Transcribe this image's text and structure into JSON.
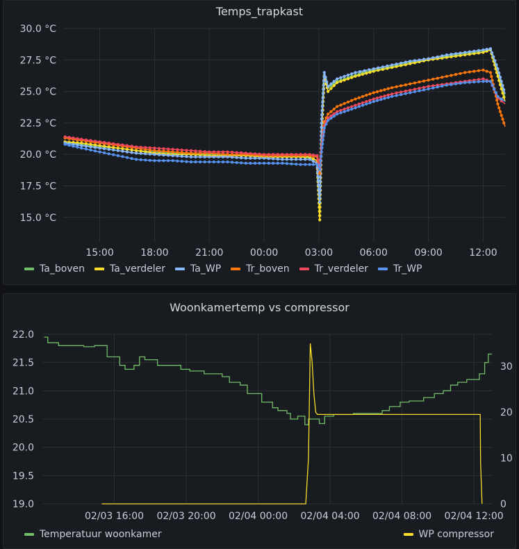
{
  "panels": [
    {
      "title": "Temps_trapkast"
    },
    {
      "title": "Woonkamertemp vs compressor"
    }
  ],
  "chart_data": [
    {
      "type": "line",
      "title": "Temps_trapkast",
      "x_ticks": [
        "15:00",
        "18:00",
        "21:00",
        "00:00",
        "03:00",
        "06:00",
        "09:00",
        "12:00"
      ],
      "x_tick_hours": [
        15,
        18,
        21,
        24,
        27,
        30,
        33,
        36
      ],
      "xlim_hours": [
        13.0,
        37.2
      ],
      "y_ticks": [
        "30.0 °C",
        "27.5 °C",
        "25.0 °C",
        "22.5 °C",
        "20.0 °C",
        "17.5 °C",
        "15.0 °C"
      ],
      "ylim": [
        13.0,
        30.0
      ],
      "grid": true,
      "legend_position": "bottom-left",
      "series": [
        {
          "name": "Ta_boven",
          "color": "#73bf69",
          "x": [
            13.1,
            14,
            15,
            16,
            17,
            18,
            19,
            20,
            21,
            22,
            23,
            24,
            25,
            26,
            26.5,
            26.9,
            27.05,
            27.15,
            27.3,
            27.5,
            28,
            29,
            30,
            31,
            32,
            33,
            34,
            35,
            36,
            36.4,
            36.8,
            37.2
          ],
          "y": [
            21.0,
            20.8,
            20.6,
            20.5,
            20.3,
            20.2,
            20.1,
            20.0,
            20.0,
            19.9,
            19.9,
            19.8,
            19.8,
            19.8,
            19.7,
            19.3,
            15.5,
            22.5,
            26.3,
            25.3,
            25.8,
            26.3,
            26.7,
            27.0,
            27.3,
            27.5,
            27.8,
            28.0,
            28.2,
            28.3,
            26.5,
            24.5
          ]
        },
        {
          "name": "Ta_verdeler",
          "color": "#fade2a",
          "x": [
            13.1,
            14,
            15,
            16,
            17,
            18,
            19,
            20,
            21,
            22,
            23,
            24,
            25,
            26,
            26.5,
            26.9,
            27.05,
            27.15,
            27.3,
            27.5,
            28,
            29,
            30,
            31,
            32,
            33,
            34,
            35,
            36,
            36.4,
            36.8,
            37.2
          ],
          "y": [
            21.0,
            20.9,
            20.7,
            20.5,
            20.3,
            20.1,
            20.0,
            20.0,
            19.9,
            19.9,
            19.9,
            19.8,
            19.8,
            19.8,
            19.8,
            19.5,
            14.8,
            21.5,
            26.2,
            25.0,
            25.7,
            26.2,
            26.6,
            26.9,
            27.2,
            27.5,
            27.7,
            27.9,
            28.1,
            28.3,
            26.2,
            24.2
          ]
        },
        {
          "name": "Ta_WP",
          "color": "#8ab8ff",
          "x": [
            13.1,
            14,
            15,
            16,
            17,
            18,
            19,
            20,
            21,
            22,
            23,
            24,
            25,
            26,
            26.5,
            26.9,
            27.05,
            27.15,
            27.3,
            27.5,
            28,
            29,
            30,
            31,
            32,
            33,
            34,
            35,
            36,
            36.4,
            36.8,
            37.2
          ],
          "y": [
            20.9,
            20.7,
            20.5,
            20.3,
            20.1,
            20.0,
            19.9,
            19.8,
            19.8,
            19.8,
            19.7,
            19.7,
            19.6,
            19.6,
            19.6,
            19.3,
            16.2,
            22.8,
            26.5,
            25.4,
            26.0,
            26.5,
            26.8,
            27.1,
            27.4,
            27.6,
            27.9,
            28.1,
            28.3,
            28.4,
            26.8,
            24.8
          ]
        },
        {
          "name": "Tr_boven",
          "color": "#ff780a",
          "x": [
            13.1,
            14,
            15,
            16,
            17,
            18,
            19,
            20,
            21,
            22,
            23,
            24,
            25,
            26,
            26.5,
            26.9,
            27.05,
            27.15,
            27.3,
            27.5,
            28,
            29,
            30,
            31,
            32,
            33,
            34,
            35,
            36,
            36.4,
            36.8,
            37.2
          ],
          "y": [
            21.3,
            21.1,
            20.9,
            20.7,
            20.5,
            20.3,
            20.2,
            20.1,
            20.1,
            20.0,
            20.0,
            19.9,
            19.9,
            19.9,
            19.9,
            19.8,
            18.5,
            20.8,
            22.6,
            23.2,
            23.8,
            24.4,
            24.9,
            25.3,
            25.6,
            25.9,
            26.2,
            26.5,
            26.7,
            26.5,
            24.0,
            22.2
          ]
        },
        {
          "name": "Tr_verdeler",
          "color": "#f2495c",
          "x": [
            13.1,
            14,
            15,
            16,
            17,
            18,
            19,
            20,
            21,
            22,
            23,
            24,
            25,
            26,
            26.5,
            26.9,
            27.05,
            27.15,
            27.3,
            27.5,
            28,
            29,
            30,
            31,
            32,
            33,
            34,
            35,
            36,
            36.4,
            36.8,
            37.2
          ],
          "y": [
            21.4,
            21.2,
            21.0,
            20.8,
            20.6,
            20.5,
            20.4,
            20.3,
            20.2,
            20.2,
            20.1,
            20.0,
            20.0,
            20.0,
            20.0,
            19.9,
            19.0,
            20.5,
            22.3,
            22.9,
            23.4,
            23.9,
            24.4,
            24.8,
            25.1,
            25.4,
            25.6,
            25.8,
            26.0,
            25.8,
            24.5,
            24.0
          ]
        },
        {
          "name": "Tr_WP",
          "color": "#5794f2",
          "x": [
            13.1,
            14,
            15,
            16,
            17,
            18,
            19,
            20,
            21,
            22,
            23,
            24,
            25,
            26,
            26.5,
            26.9,
            27.05,
            27.15,
            27.3,
            27.5,
            28,
            29,
            30,
            31,
            32,
            33,
            34,
            35,
            36,
            36.4,
            36.8,
            37.2
          ],
          "y": [
            20.8,
            20.5,
            20.2,
            19.9,
            19.6,
            19.5,
            19.5,
            19.4,
            19.4,
            19.4,
            19.3,
            19.3,
            19.3,
            19.2,
            19.2,
            19.2,
            18.8,
            20.2,
            22.1,
            22.7,
            23.2,
            23.7,
            24.2,
            24.6,
            24.9,
            25.2,
            25.5,
            25.7,
            25.8,
            25.8,
            24.6,
            24.2
          ]
        }
      ]
    },
    {
      "type": "line",
      "title": "Woonkamertemp vs compressor",
      "x_ticks": [
        "02/03 16:00",
        "02/03 20:00",
        "02/04 00:00",
        "02/04 04:00",
        "02/04 08:00",
        "02/04 12:00"
      ],
      "x_tick_hours": [
        16,
        20,
        24,
        28,
        32,
        36
      ],
      "xlim_hours": [
        12.0,
        37.0
      ],
      "y_left_ticks": [
        "22.0",
        "21.5",
        "21.0",
        "20.5",
        "20.0",
        "19.5",
        "19.0"
      ],
      "ylim_left": [
        19.0,
        22.0
      ],
      "y_right_ticks": [
        "30",
        "20",
        "10",
        "0"
      ],
      "ylim_right": [
        0,
        37
      ],
      "grid": true,
      "legend_position": "bottom",
      "series": [
        {
          "name": "Temperatuur woonkamer",
          "color": "#73bf69",
          "axis": "left",
          "step": true,
          "x": [
            12.1,
            12.3,
            12.9,
            14.3,
            14.9,
            15.6,
            16.3,
            16.6,
            17.1,
            17.4,
            17.7,
            18.4,
            19.7,
            20.2,
            21.0,
            22.0,
            22.4,
            23.0,
            23.4,
            24.2,
            24.8,
            25.1,
            25.6,
            25.8,
            26.2,
            26.6,
            26.8,
            27.4,
            27.7,
            28.2,
            29.3,
            30.9,
            31.3,
            31.9,
            32.4,
            33.2,
            33.8,
            34.3,
            34.7,
            35.1,
            35.6,
            36.3,
            36.6,
            36.8,
            37.0
          ],
          "y": [
            21.95,
            21.85,
            21.8,
            21.78,
            21.8,
            21.6,
            21.45,
            21.38,
            21.45,
            21.6,
            21.55,
            21.45,
            21.38,
            21.35,
            21.3,
            21.25,
            21.15,
            21.1,
            20.95,
            20.8,
            20.7,
            20.65,
            20.6,
            20.5,
            20.55,
            20.4,
            20.5,
            20.42,
            20.55,
            20.58,
            20.6,
            20.65,
            20.72,
            20.8,
            20.82,
            20.88,
            20.95,
            21.0,
            21.1,
            21.15,
            21.2,
            21.3,
            21.5,
            21.65,
            21.65
          ]
        },
        {
          "name": "WP compressor",
          "color": "#fade2a",
          "axis": "right",
          "x": [
            15.3,
            26.65,
            26.8,
            26.9,
            27.0,
            27.1,
            27.2,
            27.3,
            28.0,
            29.0,
            30.0,
            31.0,
            32.0,
            33.0,
            34.0,
            35.0,
            35.8,
            36.35,
            36.37,
            36.45
          ],
          "y": [
            0,
            0,
            10,
            35,
            31,
            24,
            20,
            19.5,
            19.5,
            19.5,
            19.5,
            19.5,
            19.5,
            19.5,
            19.5,
            19.5,
            19.5,
            19.5,
            9,
            0
          ]
        }
      ]
    }
  ]
}
